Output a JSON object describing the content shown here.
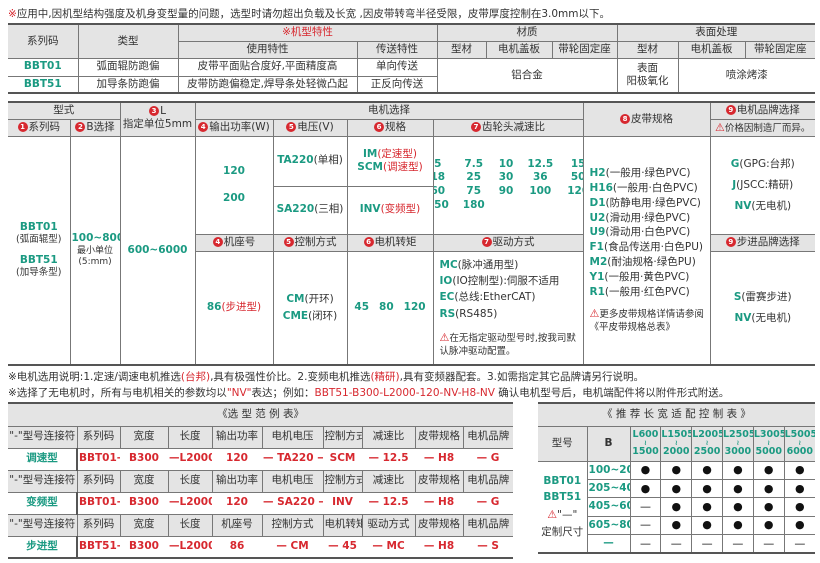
{
  "top_note": {
    "mark": "※",
    "text": "应用中,因机型结构强度及机身变型量的问题，选型时请勿超出负载及长宽 ,因皮带转弯半径受限，皮带厚度控制在3.0mm以下。"
  },
  "table1": {
    "h_series": "系列码",
    "h_type": "类型",
    "h_model_feature": "※机型特性",
    "h_use": "使用特性",
    "h_transfer": "传送特性",
    "h_material": "材质",
    "h_surface": "表面处理",
    "h_profile": "型材",
    "h_motor_cover": "电机盖板",
    "h_pulley_seat": "带轮固定座",
    "rows": [
      {
        "series": "BBT01",
        "type": "弧面辊防跑偏",
        "use": "皮带平面贴合度好,平面精度高",
        "transfer": "单向传送"
      },
      {
        "series": "BBT51",
        "type": "加导条防跑偏",
        "use": "皮带防跑偏稳定,焊导条处轻微凸起",
        "transfer": "正反向传送"
      }
    ],
    "material_value": "铝合金",
    "surface_profile_l1": "表面",
    "surface_profile_l2": "阳极氧化",
    "surface_other": "喷涂烤漆"
  },
  "table2": {
    "h_form": "型式",
    "h_L_num": "3",
    "h_L": "L",
    "h_L_unit": "指定单位5mm",
    "h_motor": "电机选择",
    "h_belt_num": "8",
    "h_belt": "皮带规格",
    "h_brand_num": "9",
    "h_brand": "电机品牌选择",
    "h_brand_note": "价格因制造厂而异。",
    "h_series_num": "1",
    "h_series": "系列码",
    "h_b_num": "2",
    "h_b": "B选择",
    "h_power_num": "4",
    "h_power": "输出功率(W)",
    "h_voltage_num": "5",
    "h_voltage": "电压(V)",
    "h_spec_num": "6",
    "h_spec": "规格",
    "h_ratio_num": "7",
    "h_ratio": "齿轮头减速比",
    "series": [
      {
        "code": "BBT01",
        "desc": "(弧面辊型)"
      },
      {
        "code": "BBT51",
        "desc": "(加导条型)"
      }
    ],
    "b_range": "100~800",
    "b_unit_l1": "最小单位",
    "b_unit_l2": "(5:mm)",
    "l_range": "600~6000",
    "power": [
      "120",
      "200"
    ],
    "voltage": [
      {
        "code": "TA220",
        "desc": "(单相)"
      },
      {
        "code": "SA220",
        "desc": "(三相)"
      }
    ],
    "spec": [
      {
        "code": "IM",
        "desc": "(定速型)"
      },
      {
        "code": "SCM",
        "desc": "(调速型)"
      },
      {
        "code": "INV",
        "desc": "(变频型)"
      }
    ],
    "ratios": [
      "5",
      "7.5",
      "10",
      "12.5",
      "15",
      "18",
      "25",
      "30",
      "36",
      "50",
      "60",
      "75",
      "90",
      "100",
      "120",
      "150",
      "180"
    ],
    "belts": [
      {
        "code": "H2",
        "desc": "(一般用·绿色PVC)"
      },
      {
        "code": "H16",
        "desc": "(一般用·白色PVC)"
      },
      {
        "code": "D1",
        "desc": "(防静电用·绿色PVC)"
      },
      {
        "code": "U2",
        "desc": "(滑动用·绿色PVC)"
      },
      {
        "code": "U9",
        "desc": "(滑动用·白色PVC)"
      },
      {
        "code": "F1",
        "desc": "(食品传送用·白色PU)"
      },
      {
        "code": "M2",
        "desc": "(耐油规格·绿色PU)"
      },
      {
        "code": "Y1",
        "desc": "(一般用·黄色PVC)"
      },
      {
        "code": "R1",
        "desc": "(一般用·红色PVC)"
      }
    ],
    "belt_note": "更多皮带规格详情请参阅《平皮带规格总表》",
    "brands": [
      {
        "code": "G",
        "desc": "(GPG:台邦)"
      },
      {
        "code": "J",
        "desc": "(JSCC:精研)"
      },
      {
        "code": "NV",
        "desc": "(无电机)"
      }
    ],
    "h_frame_num": "4",
    "h_frame": "机座号",
    "h_control_num": "5",
    "h_control": "控制方式",
    "h_torque_num": "6",
    "h_torque": "电机转矩",
    "h_drive_num": "7",
    "h_drive": "驱动方式",
    "h_step_brand_num": "9",
    "h_step_brand": "步进品牌选择",
    "frame_code": "86",
    "frame_desc": "(步进型)",
    "control": [
      {
        "code": "CM",
        "desc": "(开环)"
      },
      {
        "code": "CME",
        "desc": "(闭环)"
      }
    ],
    "torque": [
      "45",
      "80",
      "120"
    ],
    "drive": [
      {
        "code": "MC",
        "desc": "(脉冲通用型)"
      },
      {
        "code": "IO",
        "desc": "(IO控制型):伺服不适用"
      },
      {
        "code": "EC",
        "desc": "(总线:EtherCAT)"
      },
      {
        "code": "RS",
        "desc": "(RS485)"
      }
    ],
    "drive_note": "在无指定驱动型号时,按我司默认脉冲驱动配置。",
    "step_brands": [
      {
        "code": "S",
        "desc": "(雷赛步进)"
      },
      {
        "code": "NV",
        "desc": "(无电机)"
      }
    ]
  },
  "notes": {
    "n1_a": "※电机选用说明:1.定速/调速电机推选",
    "n1_b": "(台邦)",
    "n1_c": ",具有极强性价比。2.变频电机推选",
    "n1_d": "(精研)",
    "n1_e": ",具有变频器配套。3.如需指定其它品牌请另行说明。",
    "n2_a": "※选择了无电机时，所有与电机相关的参数均以",
    "n2_b": "\"NV\"",
    "n2_c": "表达；例如：",
    "n2_d": "BBT51-B300-L2000-120-NV-H8-NV",
    "n2_e": "  确认电机型号后，电机端配件将以附件形式附送。"
  },
  "example": {
    "title": "《选 型 范 例 表》",
    "groups": [
      {
        "headers": [
          "\"-\"型号连接符",
          "系列码",
          "宽度",
          "长度",
          "输出功率",
          "电机电压",
          "控制方式",
          "减速比",
          "皮带规格",
          "电机品牌"
        ],
        "label": "调速型",
        "values": [
          "BBT01—",
          "B300",
          "—L2000 —",
          "120",
          "— TA220 —",
          "SCM",
          "—  12.5",
          "—  H8",
          "—  G"
        ]
      },
      {
        "headers": [
          "\"-\"型号连接符",
          "系列码",
          "宽度",
          "长度",
          "输出功率",
          "电机电压",
          "控制方式",
          "减速比",
          "皮带规格",
          "电机品牌"
        ],
        "label": "变频型",
        "values": [
          "BBT01—",
          "B300",
          "—L2000 —",
          "120",
          "— SA220 —",
          "INV",
          "—  12.5",
          "—  H8",
          "—  G"
        ]
      },
      {
        "headers": [
          "\"-\"型号连接符",
          "系列码",
          "宽度",
          "长度",
          "机座号",
          "控制方式",
          "电机转矩",
          "驱动方式",
          "皮带规格",
          "电机品牌"
        ],
        "label": "步进型",
        "values": [
          "BBT51—",
          "B300",
          "—L2000 —",
          "86",
          "—  CM",
          "—  45",
          "—  MC",
          "—  H8",
          "—  S"
        ]
      }
    ]
  },
  "fit": {
    "title": "《 推 荐 长 宽 适 配 控 制 表 》",
    "h_model": "型号",
    "h_b": "B",
    "lengths": [
      [
        "L600",
        "1500"
      ],
      [
        "L1505",
        "2000"
      ],
      [
        "L2005",
        "2500"
      ],
      [
        "L2505",
        "3000"
      ],
      [
        "L3005",
        "5000"
      ],
      [
        "L5005",
        "6000"
      ]
    ],
    "range_sep": "≀",
    "models": [
      "BBT01",
      "BBT51"
    ],
    "custom_mark": "\"—\"",
    "custom_label": "定制尺寸",
    "rows": [
      {
        "b": "100~200",
        "cells": [
          "●",
          "●",
          "●",
          "●",
          "●",
          "●"
        ]
      },
      {
        "b": "205~400",
        "cells": [
          "●",
          "●",
          "●",
          "●",
          "●",
          "●"
        ]
      },
      {
        "b": "405~600",
        "cells": [
          "—",
          "●",
          "●",
          "●",
          "●",
          "●"
        ]
      },
      {
        "b": "605~800",
        "cells": [
          "—",
          "●",
          "●",
          "●",
          "●",
          "●"
        ]
      },
      {
        "b": "—",
        "cells": [
          "—",
          "—",
          "—",
          "—",
          "—",
          "—"
        ]
      }
    ]
  },
  "colors": {
    "accent_green": "#1b9a82",
    "accent_red": "#d7282f",
    "header_bg": "#e4e4e4"
  }
}
